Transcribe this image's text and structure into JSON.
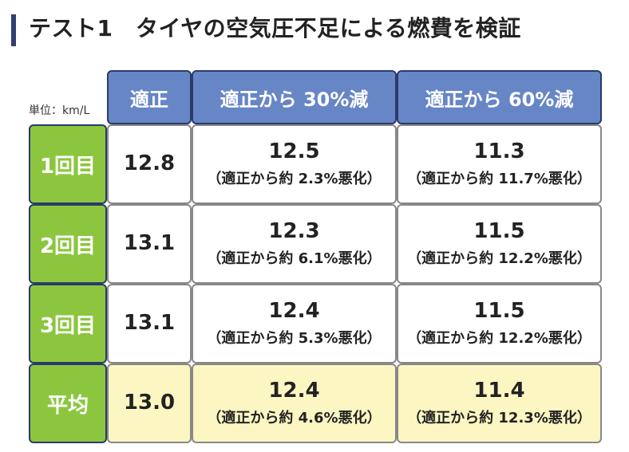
{
  "title": "テスト1　タイヤの空気圧不足による燃費を検証",
  "unit_label": "単位：km/L",
  "columns": [
    "適正",
    "適正から 30%減",
    "適正から 60%減"
  ],
  "rows": [
    {
      "label": "1回目",
      "base": "12.8",
      "minus30": {
        "value": "12.5",
        "note": "（適正から約 2.3%悪化）"
      },
      "minus60": {
        "value": "11.3",
        "note": "（適正から約 11.7%悪化）"
      }
    },
    {
      "label": "2回目",
      "base": "13.1",
      "minus30": {
        "value": "12.3",
        "note": "（適正から約 6.1%悪化）"
      },
      "minus60": {
        "value": "11.5",
        "note": "（適正から約 12.2%悪化）"
      }
    },
    {
      "label": "3回目",
      "base": "13.1",
      "minus30": {
        "value": "12.4",
        "note": "（適正から約 5.3%悪化）"
      },
      "minus60": {
        "value": "11.5",
        "note": "（適正から約 12.2%悪化）"
      }
    },
    {
      "label": "平均",
      "base": "13.0",
      "minus30": {
        "value": "12.4",
        "note": "（適正から約 4.6%悪化）"
      },
      "minus60": {
        "value": "11.4",
        "note": "（適正から約 12.3%悪化）"
      }
    }
  ],
  "colors": {
    "header_blue": "#6786c6",
    "row_green": "#8cc63f",
    "average_yellow": "#fbf6c2",
    "title_accent": "#2f3f73"
  }
}
